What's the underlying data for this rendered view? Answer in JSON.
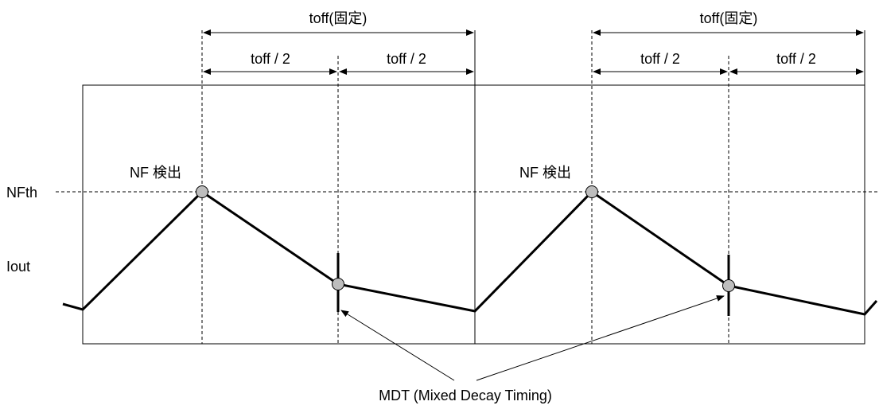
{
  "labels": {
    "toff_fixed": "toff(固定)",
    "toff_half": "toff / 2",
    "nf_detect": "NF 検出",
    "nfth": "NFth",
    "iout": "Iout",
    "mdt": "MDT (Mixed Decay Timing)"
  },
  "colors": {
    "line": "#000000",
    "marker_fill": "#bdbdbd",
    "background": "#ffffff"
  }
}
